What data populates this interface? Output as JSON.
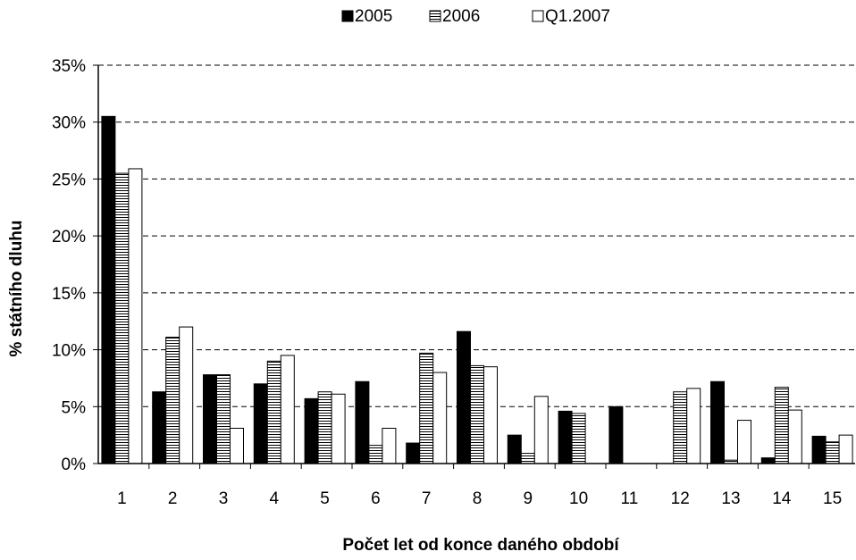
{
  "chart_data": {
    "type": "bar",
    "xlabel": "Počet let od konce daného období",
    "ylabel": "% státního dluhu",
    "categories": [
      "1",
      "2",
      "3",
      "4",
      "5",
      "6",
      "7",
      "8",
      "9",
      "10",
      "11",
      "12",
      "13",
      "14",
      "15"
    ],
    "series": [
      {
        "name": "2005",
        "pattern": "solid",
        "values": [
          30.5,
          6.3,
          7.8,
          7.0,
          5.7,
          7.2,
          1.8,
          11.6,
          2.5,
          4.6,
          5.0,
          0.0,
          7.2,
          0.5,
          2.4
        ]
      },
      {
        "name": "2006",
        "pattern": "horizontal",
        "values": [
          25.5,
          11.1,
          7.8,
          9.0,
          6.3,
          1.6,
          9.7,
          8.6,
          0.9,
          4.4,
          0.0,
          6.3,
          0.3,
          6.7,
          1.9
        ]
      },
      {
        "name": "Q1.2007",
        "pattern": "white",
        "values": [
          25.9,
          12.0,
          3.1,
          9.5,
          6.1,
          3.1,
          8.0,
          8.5,
          5.9,
          0.0,
          0.0,
          6.6,
          3.8,
          4.7,
          2.5
        ]
      }
    ],
    "ylim": [
      0,
      35
    ],
    "yticks": [
      0,
      5,
      10,
      15,
      20,
      25,
      30,
      35
    ],
    "ytick_suffix": "%",
    "grid": "horizontal dashed",
    "legend_position": "top",
    "colors": {
      "solid": "#000000",
      "outline": "#000000",
      "white": "#ffffff",
      "stripe": "#000000"
    }
  }
}
